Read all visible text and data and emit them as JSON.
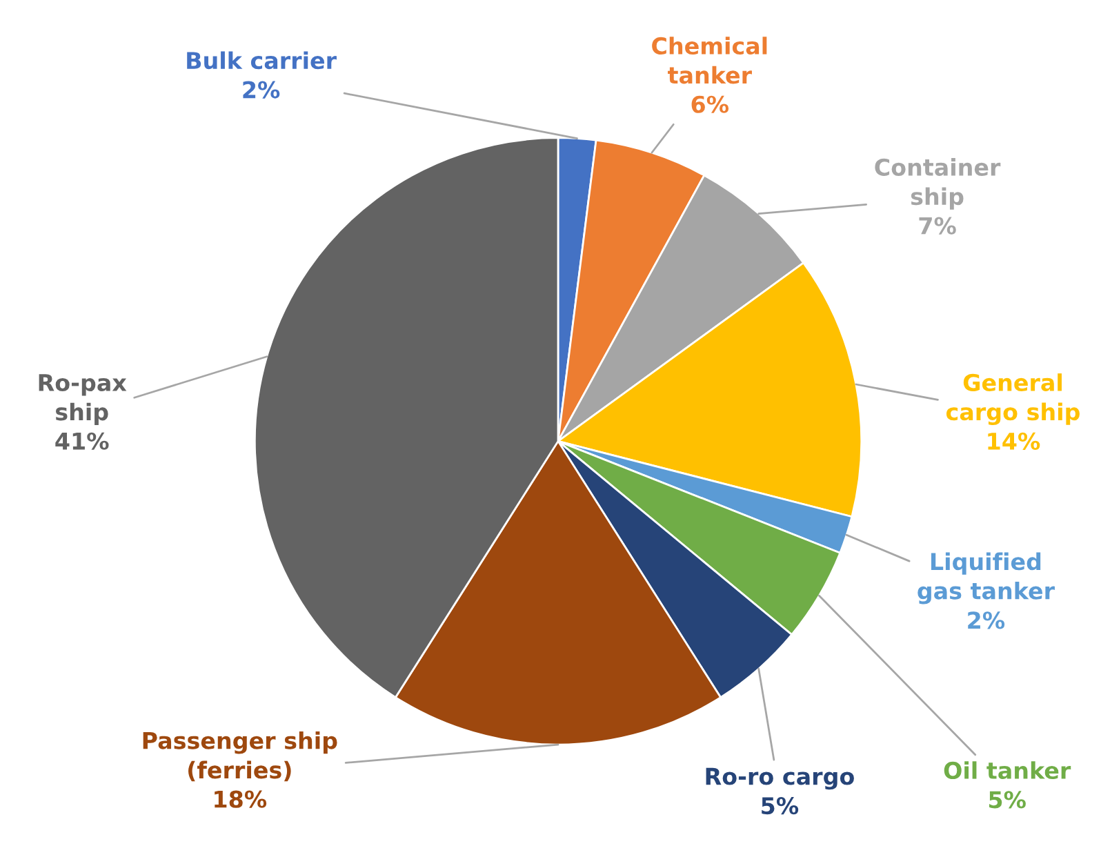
{
  "chart_data": {
    "type": "pie",
    "categories": [
      "Bulk carrier",
      "Chemical\ntanker",
      "Container\nship",
      "General\ncargo ship",
      "Liquified\ngas tanker",
      "Oil tanker",
      "Ro-ro cargo",
      "Passenger ship\n(ferries)",
      "Ro-pax\nship"
    ],
    "values": [
      2,
      6,
      7,
      14,
      2,
      5,
      5,
      18,
      41
    ],
    "colors": [
      "#4472c4",
      "#ed7d31",
      "#a5a5a5",
      "#ffc000",
      "#5b9bd5",
      "#70ad47",
      "#264478",
      "#9e480e",
      "#636363"
    ],
    "value_labels": [
      "2%",
      "6%",
      "7%",
      "14%",
      "2%",
      "5%",
      "5%",
      "18%",
      "41%"
    ]
  }
}
